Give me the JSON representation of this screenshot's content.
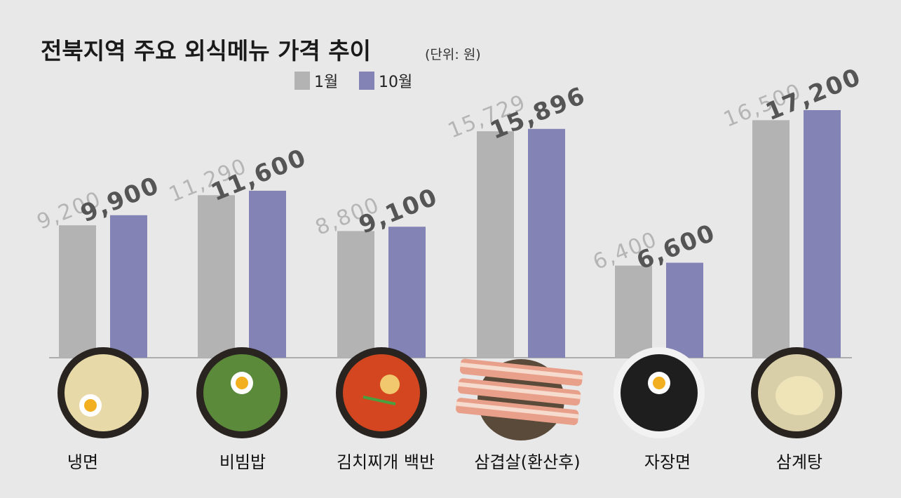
{
  "chart_data": {
    "type": "bar",
    "title": "전북지역 주요 외식메뉴 가격 추이",
    "unit_note": "(단위: 원)",
    "categories": [
      "냉면",
      "비빔밥",
      "김치찌개 백반",
      "삼겹살(환산후)",
      "자장면",
      "삼계탕"
    ],
    "series": [
      {
        "name": "1월",
        "color": "#b3b3b3",
        "values": [
          9200,
          11290,
          8800,
          15729,
          6400,
          16500
        ],
        "labels": [
          "9,200",
          "11,290",
          "8,800",
          "15,729",
          "6,400",
          "16,500"
        ]
      },
      {
        "name": "10월",
        "color": "#8383b6",
        "values": [
          9900,
          11600,
          9100,
          15896,
          6600,
          17200
        ],
        "labels": [
          "9,900",
          "11,600",
          "9,100",
          "15,896",
          "6,600",
          "17,200"
        ]
      }
    ],
    "ylim": [
      0,
      17200
    ],
    "legend_position": "top-left",
    "grid": false
  }
}
